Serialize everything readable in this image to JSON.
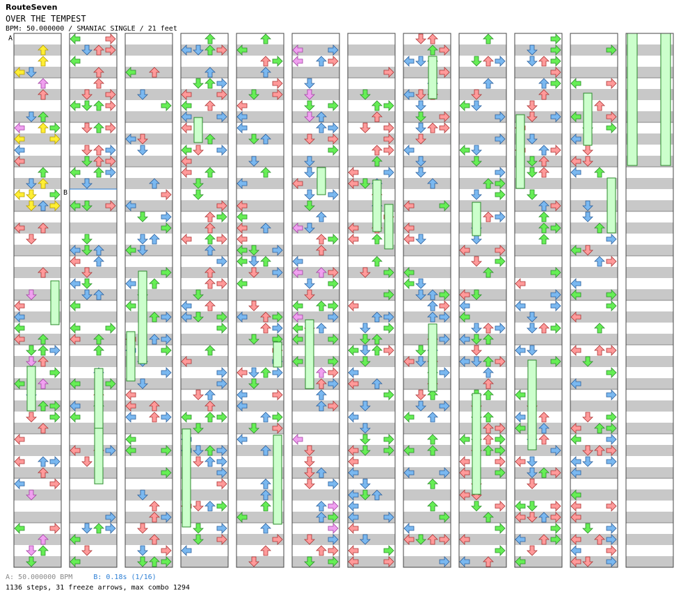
{
  "header": {
    "artist": "RouteSeven",
    "title": "OVER THE TEMPEST",
    "meta": "BPM: 50.000000 / SMANIAC SINGLE / 21 feet"
  },
  "markers": {
    "a": "A",
    "b": "B"
  },
  "footer": {
    "bpm_text": "A: 50.000000 BPM",
    "stop_text": "B: 0.18s (1/16)",
    "summary": "1136 steps, 31 freeze arrows, max combo 1294"
  },
  "colors": {
    "background": "#ffffff",
    "stripe": "#c8c8c8",
    "quarter_note": "#ff9a9a",
    "eighth_note": "#7ab8f0",
    "sixteenth_note": "#66ee55",
    "twelfth_note": "#f0a0f0",
    "thirtysecond_note": "#ffee33",
    "freeze_fill": "#ccffcc",
    "freeze_border": "#2a8a2a",
    "column_border": "#444444"
  },
  "icons": {
    "arrow": "arrow-icon",
    "freeze": "freeze-arrow-icon"
  },
  "chart_data": {
    "type": "step-chart",
    "columns": 12,
    "rows_per_column": 12,
    "total_steps": 1136,
    "freeze_arrows": 31,
    "max_combo": 1294,
    "bpm": 50.0,
    "stop_seconds": 0.18
  }
}
